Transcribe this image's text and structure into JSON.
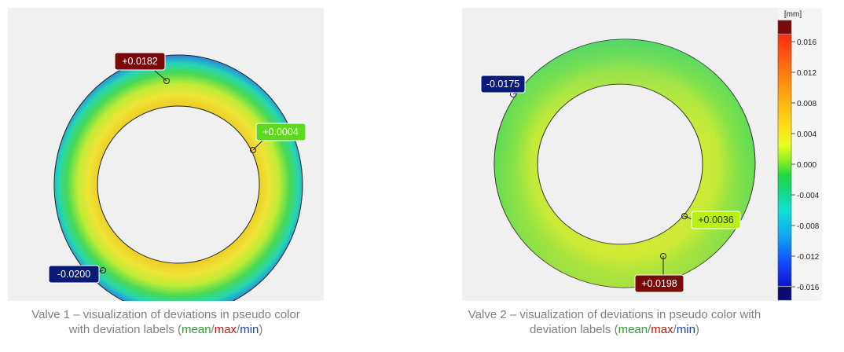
{
  "colors": {
    "max_label": "#7a0a0a",
    "min_label": "#0a1a78",
    "mean_label": "#5fd820",
    "mean2_label": "#b8f01a",
    "scale": [
      "#7a0a0a",
      "#ff2a10",
      "#ff8a10",
      "#ffd200",
      "#f4ff20",
      "#b8ff20",
      "#40e030",
      "#14d070",
      "#10e0d0",
      "#10a8f0",
      "#1060ff",
      "#1010d8",
      "#0a0a70"
    ]
  },
  "valve1": {
    "labels": {
      "max": "+0.0182",
      "mean": "+0.0004",
      "min": "-0.0200"
    },
    "caption": {
      "line1": "Valve 1 – visualization of deviations in pseudo color",
      "line2_prefix": "with deviation labels (",
      "mean": "mean",
      "sep1": "/",
      "max": "max",
      "sep2": "/",
      "min": "min",
      "suffix": ")"
    }
  },
  "valve2": {
    "labels": {
      "min": "-0.0175",
      "mean": "+0.0036",
      "max": "+0.0198"
    },
    "caption": {
      "line1": "Valve 2 – visualization of deviations in pseudo color with",
      "line2_prefix": "deviation labels (",
      "mean": "mean",
      "sep1": "/",
      "max": "max",
      "sep2": "/",
      "min": "min",
      "suffix": ")"
    }
  },
  "colorbar": {
    "unit": "[mm]",
    "ticks": [
      "0.016",
      "0.012",
      "0.008",
      "0.004",
      "0.000",
      "-0.004",
      "-0.008",
      "-0.012",
      "-0.016"
    ]
  }
}
